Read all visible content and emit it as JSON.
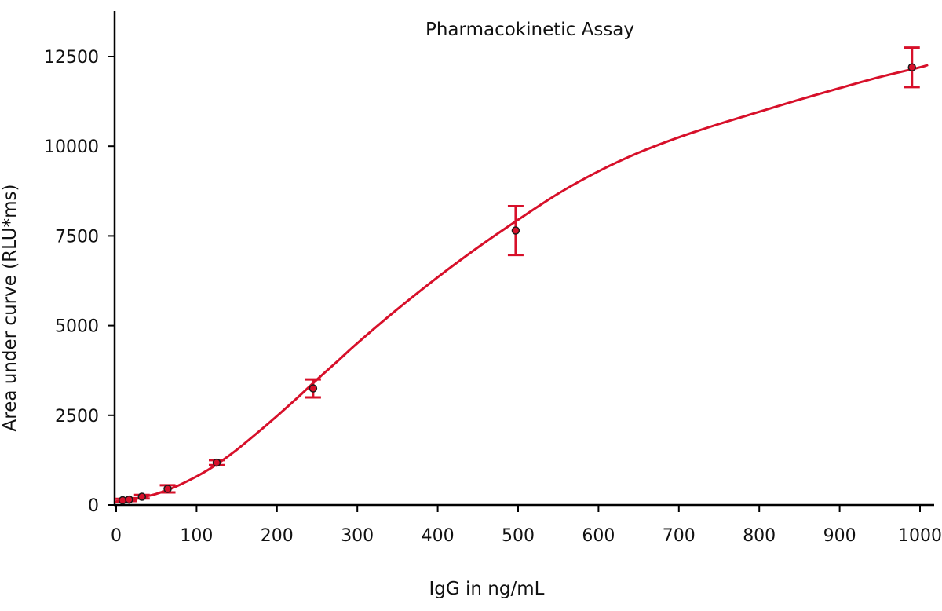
{
  "chart_data": {
    "type": "scatter",
    "title": "Pharmacokinetic Assay",
    "xlabel": "IgG in ng/mL",
    "ylabel": "Area under curve (RLU*ms)",
    "xlim": [
      0,
      1020
    ],
    "ylim": [
      0,
      13700
    ],
    "x_ticks": [
      0,
      100,
      200,
      300,
      400,
      500,
      600,
      700,
      800,
      900,
      1000
    ],
    "y_ticks": [
      0,
      2500,
      5000,
      7500,
      10000,
      12500
    ],
    "grid": false,
    "colors": {
      "curve": "#d7102a",
      "marker_fill": "#d7102a",
      "marker_edge": "#1a1a1a",
      "axis": "#000000"
    },
    "points": [
      {
        "x": 8,
        "y": 130,
        "err": 40
      },
      {
        "x": 16,
        "y": 150,
        "err": 40
      },
      {
        "x": 32,
        "y": 230,
        "err": 50
      },
      {
        "x": 64,
        "y": 450,
        "err": 100
      },
      {
        "x": 125,
        "y": 1180,
        "err": 70
      },
      {
        "x": 245,
        "y": 3250,
        "err": 250
      },
      {
        "x": 497,
        "y": 7650,
        "err": 680
      },
      {
        "x": 990,
        "y": 12200,
        "err": 550
      }
    ],
    "fit_curve": {
      "x": [
        0,
        10,
        20,
        30,
        50,
        70,
        90,
        110,
        130,
        150,
        175,
        200,
        225,
        250,
        275,
        300,
        350,
        400,
        450,
        500,
        550,
        600,
        650,
        700,
        750,
        800,
        850,
        900,
        950,
        1000,
        1010
      ],
      "y": [
        100,
        120,
        150,
        200,
        310,
        470,
        680,
        920,
        1210,
        1540,
        2000,
        2480,
        2980,
        3500,
        4000,
        4510,
        5460,
        6350,
        7180,
        7950,
        8680,
        9300,
        9820,
        10250,
        10620,
        10960,
        11300,
        11620,
        11930,
        12200,
        12270
      ]
    }
  }
}
